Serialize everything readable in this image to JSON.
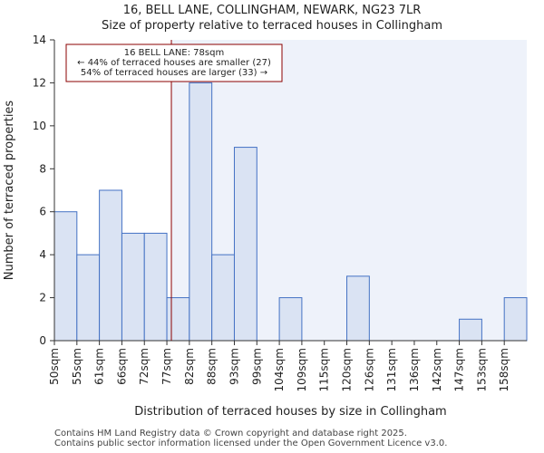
{
  "chart_data": {
    "type": "bar",
    "title": "16, BELL LANE, COLLINGHAM, NEWARK, NG23 7LR",
    "subtitle": "Size of property relative to terraced houses in Collingham",
    "xlabel": "Distribution of terraced houses by size in Collingham",
    "ylabel": "Number of terraced properties",
    "categories": [
      "50sqm",
      "55sqm",
      "61sqm",
      "66sqm",
      "72sqm",
      "77sqm",
      "82sqm",
      "88sqm",
      "93sqm",
      "99sqm",
      "104sqm",
      "109sqm",
      "115sqm",
      "120sqm",
      "126sqm",
      "131sqm",
      "136sqm",
      "142sqm",
      "147sqm",
      "153sqm",
      "158sqm"
    ],
    "values": [
      6,
      4,
      7,
      5,
      5,
      2,
      12,
      4,
      9,
      0,
      2,
      0,
      0,
      3,
      0,
      0,
      0,
      0,
      1,
      0,
      2
    ],
    "ylim": [
      0,
      14
    ],
    "yticks": [
      0,
      2,
      4,
      6,
      8,
      10,
      12,
      14
    ],
    "marker_value": 78,
    "marker_bin_index": 5.2,
    "annotation": {
      "line1": "16 BELL LANE: 78sqm",
      "line2": "← 44% of terraced houses are smaller (27)",
      "line3": "54% of terraced houses are larger (33) →"
    },
    "colors": {
      "bar_fill": "#dae3f3",
      "bar_edge": "#4472c4",
      "marker": "#8b0000",
      "highlight_bg": "#eef2fa"
    }
  },
  "footer": {
    "line1": "Contains HM Land Registry data © Crown copyright and database right 2025.",
    "line2": "Contains public sector information licensed under the Open Government Licence v3.0."
  }
}
